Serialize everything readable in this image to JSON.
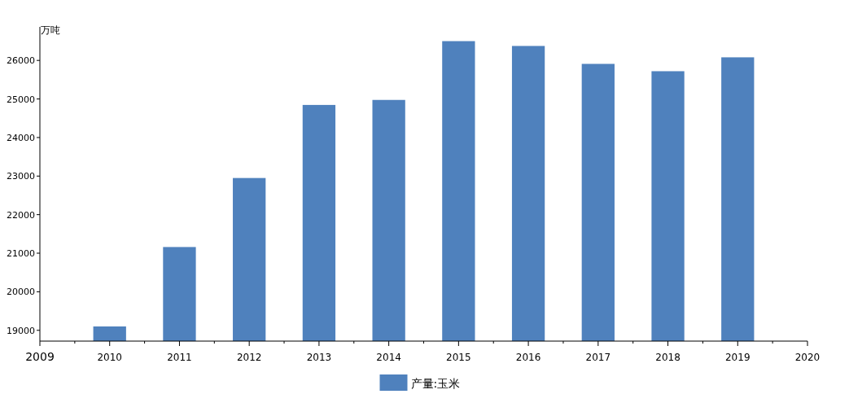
{
  "chart_data": {
    "type": "bar",
    "ylabel": "万吨",
    "x": [
      2010,
      2011,
      2012,
      2013,
      2014,
      2015,
      2016,
      2017,
      2018,
      2019
    ],
    "series": [
      {
        "name": "产量:玉米",
        "color": "#4f81bd",
        "values": [
          19100,
          21160,
          22950,
          24845,
          24975,
          26500,
          26375,
          25910,
          25720,
          26080
        ]
      }
    ],
    "xlim": [
      2009,
      2020
    ],
    "xticks": [
      2009,
      {
        "value": 2009.5,
        "label": null
      },
      2010,
      {
        "value": 2010.5,
        "label": null
      },
      2011,
      {
        "value": 2011.5,
        "label": null
      },
      2012,
      {
        "value": 2012.5,
        "label": null
      },
      2013,
      {
        "value": 2013.5,
        "label": null
      },
      2014,
      {
        "value": 2014.5,
        "label": null
      },
      2015,
      {
        "value": 2015.5,
        "label": null
      },
      2016,
      {
        "value": 2016.5,
        "label": null
      },
      2017,
      {
        "value": 2017.5,
        "label": null
      },
      2018,
      {
        "value": 2018.5,
        "label": null
      },
      2019,
      {
        "value": 2019.5,
        "label": null
      },
      2020
    ],
    "ylim": [
      18720,
      26870
    ],
    "yticks": [
      19000,
      20000,
      21000,
      22000,
      23000,
      24000,
      25000,
      26000
    ],
    "legend": "bottom",
    "grid": false
  }
}
